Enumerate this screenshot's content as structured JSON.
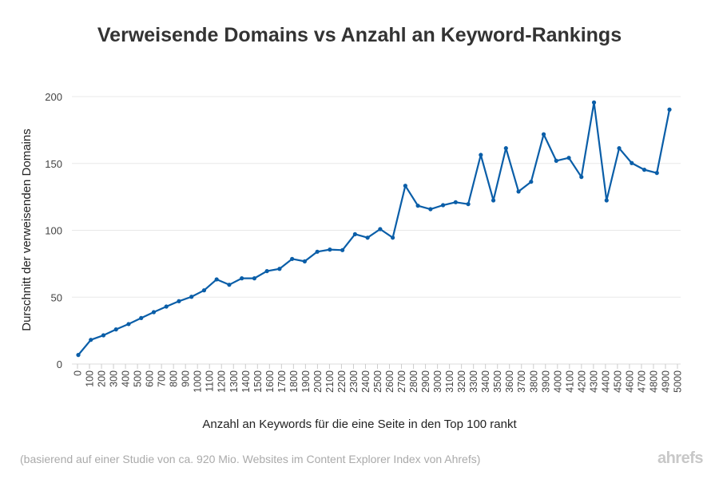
{
  "chart_data": {
    "type": "line",
    "title": "Verweisende Domains vs Anzahl an Keyword-Rankings",
    "xlabel": "Anzahl an Keywords für die eine Seite in den Top 100 rankt",
    "ylabel": "Durschnitt der verweisenden Domains",
    "ylim": [
      0,
      200
    ],
    "yticks": [
      0,
      50,
      100,
      150,
      200
    ],
    "xticks": [
      "0",
      "100",
      "200",
      "300",
      "400",
      "500",
      "600",
      "700",
      "800",
      "900",
      "1000",
      "1100",
      "1200",
      "1300",
      "1400",
      "1500",
      "1600",
      "1700",
      "1800",
      "1900",
      "2000",
      "2100",
      "2200",
      "2300",
      "2400",
      "2500",
      "2600",
      "2700",
      "2800",
      "2900",
      "3000",
      "3100",
      "3200",
      "3300",
      "3400",
      "3500",
      "3600",
      "3700",
      "3800",
      "3900",
      "4000",
      "4100",
      "4200",
      "4300",
      "4400",
      "4500",
      "4600",
      "4700",
      "4800",
      "4900",
      "5000"
    ],
    "grid": true,
    "series": [
      {
        "name": "Durschnitt der verweisenden Domains",
        "color": "#0a5ea8",
        "values": [
          6.8,
          18.1,
          21.5,
          25.9,
          29.9,
          34.4,
          38.8,
          43,
          47,
          50.3,
          55.1,
          63.3,
          59.3,
          64.1,
          64.1,
          69.5,
          71.2,
          78.6,
          76.8,
          84,
          85.6,
          85.2,
          97.1,
          94.5,
          100.9,
          94.5,
          133.3,
          118.4,
          115.8,
          118.8,
          121,
          119.6,
          156.4,
          122.4,
          161.4,
          129,
          136.3,
          171.8,
          152,
          154.2,
          139.9,
          195.6,
          122.4,
          161.4,
          150.3,
          145.3,
          142.9,
          190.3
        ]
      }
    ]
  },
  "footnote": "(basierend auf einer Studie von ca. 920 Mio. Websites im Content Explorer Index von Ahrefs)",
  "logo": "ahrefs"
}
